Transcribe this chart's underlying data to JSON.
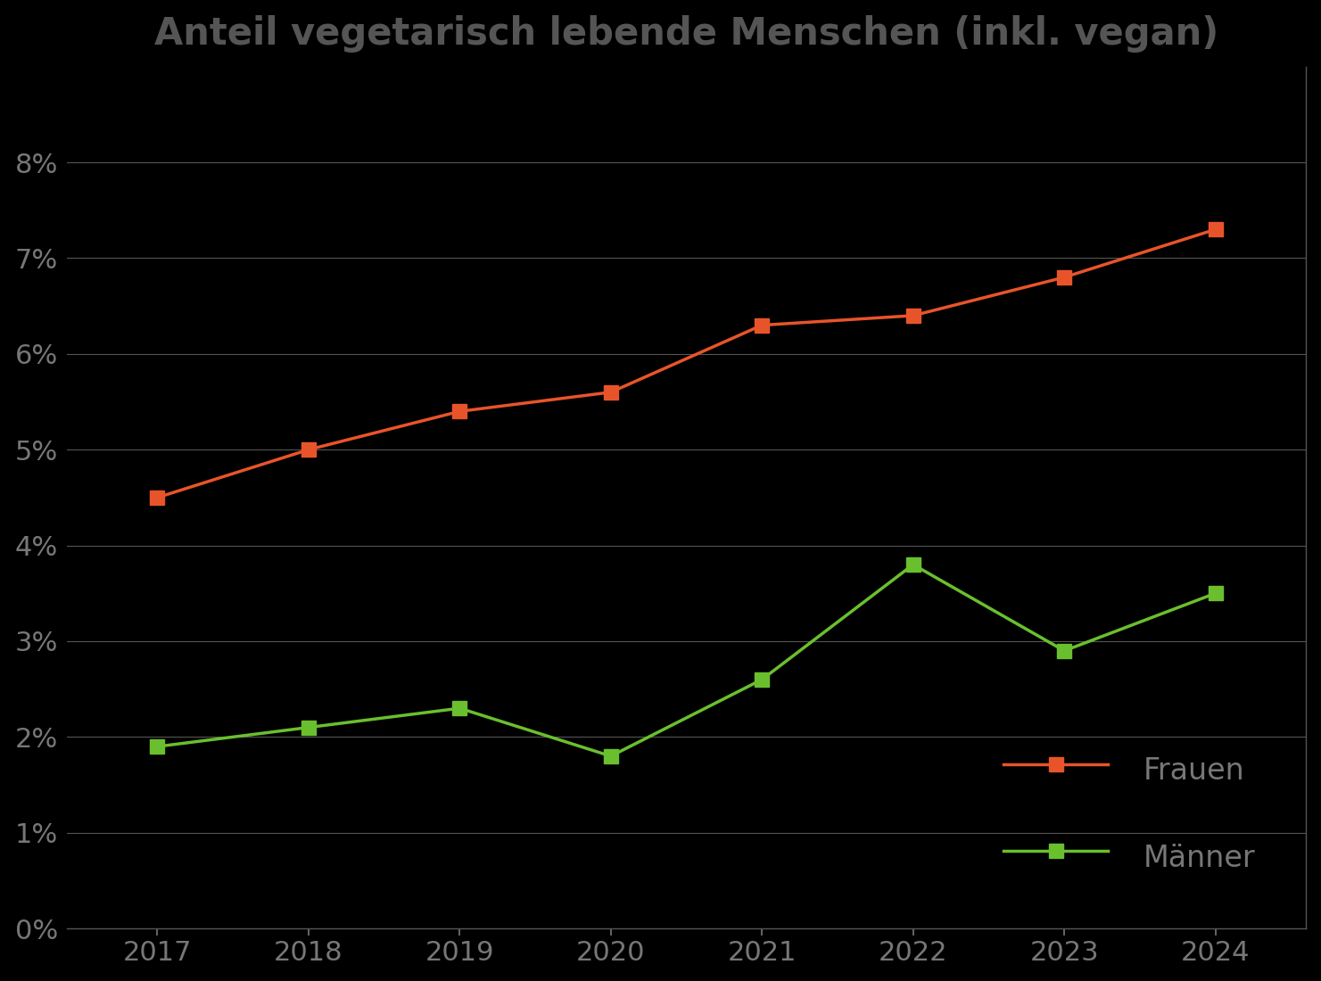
{
  "title": "Anteil vegetarisch lebende Menschen (inkl. vegan)",
  "years": [
    2017,
    2018,
    2019,
    2020,
    2021,
    2022,
    2023,
    2024
  ],
  "frauen": [
    0.045,
    0.05,
    0.054,
    0.056,
    0.063,
    0.064,
    0.068,
    0.073
  ],
  "maenner": [
    0.019,
    0.021,
    0.023,
    0.018,
    0.026,
    0.038,
    0.029,
    0.035
  ],
  "frauen_color": "#e8542a",
  "maenner_color": "#6abf2e",
  "background_color": "#000000",
  "grid_color": "#555555",
  "text_color": "#777777",
  "title_color": "#555555",
  "ylim": [
    0,
    0.09
  ],
  "yticks": [
    0,
    0.01,
    0.02,
    0.03,
    0.04,
    0.05,
    0.06,
    0.07,
    0.08
  ],
  "ytick_labels": [
    "0%",
    "1%",
    "2%",
    "3%",
    "4%",
    "5%",
    "6%",
    "7%",
    "8%"
  ],
  "legend_frauen": "Frauen",
  "legend_maenner": "Männer",
  "marker_size": 11,
  "line_width": 2.5,
  "title_fontsize": 30,
  "tick_fontsize": 22,
  "legend_fontsize": 24
}
